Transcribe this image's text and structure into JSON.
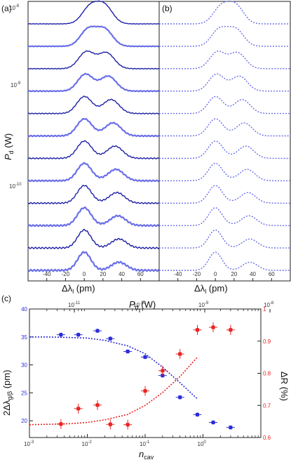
{
  "panel_a": {
    "label": "(a)",
    "ylabel_main": "P",
    "ylabel_sub": "d",
    "ylabel_unit": " (W)",
    "y_tick_labels": [
      "10^-8",
      "10^-9",
      "10^-10"
    ],
    "xlabel_main": "Δλ",
    "xlabel_sub": "l",
    "xlabel_unit": " (pm)",
    "x_tick_labels": [
      "-40",
      "-20",
      "0",
      "20",
      "40",
      "60"
    ]
  },
  "panel_b": {
    "label": "(b)",
    "xlabel_main": "Δλ",
    "xlabel_sub": "l",
    "xlabel_unit": " (pm)",
    "x_tick_labels": [
      "-40",
      "-20",
      "0",
      "20",
      "40",
      "60"
    ]
  },
  "panel_c": {
    "label": "(c)",
    "top_label_main": "P",
    "top_label_sub": "d",
    "top_label_unit": " (W)",
    "top_tick_labels": [
      "10^-11",
      "10^-10",
      "10^-9",
      "10^-8"
    ],
    "xlabel_main": "n",
    "xlabel_sub": "cav",
    "x_tick_labels": [
      "10^-3",
      "10^-2",
      "10^-1",
      "10^0"
    ],
    "ylabel_left": "2Δλ",
    "ylabel_left_sub": "g/β",
    "ylabel_left_unit": " (pm)",
    "ylabel_right": "ΔR (%)",
    "left_tick_labels": [
      "20",
      "25",
      "30",
      "35",
      "40"
    ],
    "right_tick_labels": [
      "0.6",
      "0.7",
      "0.8",
      "0.9",
      "1"
    ]
  },
  "colors": {
    "blue": "#2a2bd8",
    "red": "#e82222",
    "trace_light": "#6a6fe8",
    "trace_dark": "#1c1fa6",
    "left_axis_text": "#2a2bd8",
    "right_axis_text": "#e82222"
  },
  "chart_data": [
    {
      "type": "line",
      "panel": "(a)",
      "xlabel": "Δλl (pm)",
      "ylabel": "Pd (W)",
      "xlim": [
        -60,
        80
      ],
      "y_scale": "log (vertically offset spectra)",
      "series_count": 12,
      "curve_style": "solid",
      "peak_positions_pm": [
        [
          6,
          22
        ],
        [
          4,
          22
        ],
        [
          2,
          24
        ],
        [
          1,
          26
        ],
        [
          0,
          29
        ],
        [
          0,
          31
        ],
        [
          0,
          33
        ],
        [
          0,
          34
        ],
        [
          0,
          35
        ],
        [
          0,
          36
        ],
        [
          0,
          37
        ],
        [
          0,
          37
        ]
      ]
    },
    {
      "type": "line",
      "panel": "(b)",
      "xlabel": "Δλl (pm)",
      "xlim": [
        -60,
        80
      ],
      "series_count": 12,
      "curve_style": "dotted"
    },
    {
      "type": "scatter",
      "panel": "(c)",
      "xlabel": "ncav",
      "x_scale": "log",
      "xlim": [
        0.001,
        10
      ],
      "top_axis_label": "Pd (W)",
      "ylabel_left": "2Δλg/β (pm)",
      "ylim_left": [
        17,
        40
      ],
      "ylabel_right": "ΔR (%)",
      "ylim_right": [
        0.6,
        1.0
      ],
      "series": [
        {
          "axis": "left",
          "color": "blue",
          "x": [
            0.0035,
            0.007,
            0.015,
            0.025,
            0.05,
            0.1,
            0.2,
            0.4,
            0.8,
            1.5,
            3.0
          ],
          "y": [
            35.4,
            35.4,
            36.1,
            34.7,
            32.4,
            31.4,
            28.1,
            24.2,
            21.1,
            19.7,
            18.8
          ]
        },
        {
          "axis": "right",
          "color": "red",
          "x": [
            0.0035,
            0.007,
            0.015,
            0.025,
            0.05,
            0.1,
            0.2,
            0.4,
            0.8,
            1.5,
            3.0
          ],
          "y": [
            0.642,
            0.69,
            0.701,
            0.641,
            0.64,
            0.745,
            0.808,
            0.86,
            0.935,
            0.943,
            0.935
          ]
        },
        {
          "axis": "left",
          "color": "blue",
          "style": "dotted",
          "x": [
            0.001,
            0.002,
            0.005,
            0.01,
            0.02,
            0.05,
            0.1,
            0.2,
            0.4,
            0.8
          ],
          "y": [
            35.0,
            35.0,
            34.9,
            34.8,
            34.4,
            33.4,
            32.0,
            29.6,
            26.8,
            23.9
          ]
        },
        {
          "axis": "right",
          "color": "red",
          "style": "dotted",
          "x": [
            0.001,
            0.002,
            0.005,
            0.01,
            0.02,
            0.05,
            0.1,
            0.2,
            0.4,
            0.8
          ],
          "y": [
            0.64,
            0.641,
            0.643,
            0.647,
            0.655,
            0.672,
            0.7,
            0.74,
            0.79,
            0.85
          ]
        }
      ]
    }
  ]
}
